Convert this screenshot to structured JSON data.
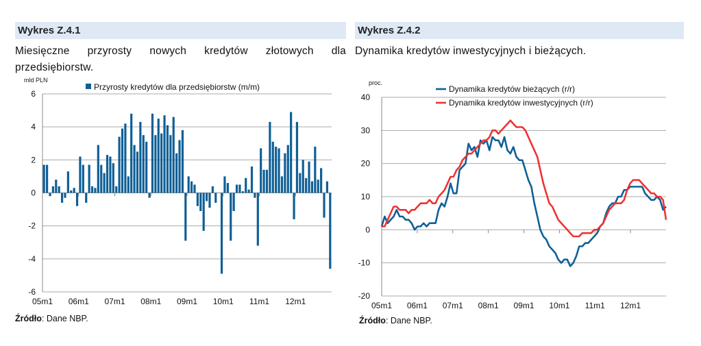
{
  "left": {
    "title": "Wykres Z.4.1",
    "subtitle": "Miesięczne przyrosty nowych kredytów złotowych dla przedsiębiorstw.",
    "source_bold": "Źródło",
    "source_rest": ": Dane NBP."
  },
  "right": {
    "title": "Wykres Z.4.2",
    "subtitle": "Dynamika kredytów inwestycyjnych i bieżących.",
    "source_bold": "Źródło",
    "source_rest": ": Dane NBP."
  },
  "chart_data": [
    {
      "type": "bar",
      "ylabel": "mld PLN",
      "ylim": [
        -6,
        6
      ],
      "yticks": [
        -6,
        -4,
        -2,
        0,
        2,
        4,
        6
      ],
      "xticklabels": [
        "05m1",
        "06m1",
        "07m1",
        "08m1",
        "09m1",
        "10m1",
        "11m1",
        "12m1"
      ],
      "color": "#0f5f96",
      "legend": "top-center",
      "grid": true,
      "series": [
        {
          "name": "Przyrosty kredytów dla przedsiębiorstw (m/m)",
          "values": [
            1.7,
            1.7,
            -0.2,
            0.4,
            0.8,
            0.4,
            -0.6,
            -0.3,
            1.3,
            0.15,
            0.3,
            -0.8,
            2.2,
            1.7,
            -0.6,
            1.7,
            0.4,
            0.3,
            2.9,
            1.7,
            1.2,
            2.3,
            2.2,
            1.8,
            0.4,
            3.4,
            3.9,
            4.2,
            1.0,
            4.8,
            2.9,
            2.5,
            4.3,
            3.5,
            3.1,
            -0.3,
            4.8,
            3.5,
            4.5,
            3.6,
            4.7,
            4.1,
            3.5,
            4.6,
            2.4,
            3.2,
            3.8,
            -2.9,
            1.0,
            0.7,
            0.5,
            -0.8,
            -1.1,
            -2.3,
            -0.5,
            -0.9,
            0.4,
            -0.6,
            0.0,
            -4.9,
            1.0,
            0.6,
            -2.9,
            -1.1,
            0.5,
            0.5,
            0.1,
            0.9,
            0.2,
            1.6,
            -0.3,
            -3.2,
            2.7,
            1.4,
            1.4,
            4.3,
            3.1,
            2.8,
            2.7,
            1.0,
            2.4,
            2.9,
            4.9,
            -1.6,
            4.3,
            1.2,
            2.0,
            0.9,
            1.9,
            0.7,
            2.8,
            0.8,
            1.5,
            -1.5,
            0.7,
            -4.6
          ]
        }
      ]
    },
    {
      "type": "line",
      "ylabel": "proc.",
      "ylim": [
        -20,
        40
      ],
      "yticks": [
        -20,
        -10,
        0,
        10,
        20,
        30,
        40
      ],
      "xticklabels": [
        "05m1",
        "06m1",
        "07m1",
        "08m1",
        "09m1",
        "10m1",
        "11m1",
        "12m1"
      ],
      "legend": "top-left",
      "grid": true,
      "series": [
        {
          "name": "Dynamika kredytów bieżących (r/r)",
          "color": "#0f5f96",
          "values": [
            1,
            4,
            2,
            3,
            4,
            6,
            4,
            4,
            3,
            3,
            2,
            0,
            1,
            1,
            2,
            1,
            2,
            2,
            2,
            6,
            8,
            7,
            10,
            14,
            11,
            11,
            18,
            19,
            20,
            26,
            24,
            25,
            22,
            27,
            26,
            27,
            24,
            28,
            27,
            27,
            25,
            28,
            24,
            23,
            25,
            22,
            21,
            21,
            18,
            15,
            13,
            8,
            4,
            0,
            -2,
            -3,
            -5,
            -6,
            -7,
            -9,
            -10,
            -9,
            -9,
            -11,
            -10,
            -8,
            -5,
            -5,
            -4,
            -4,
            -3,
            -2,
            -1,
            1,
            2,
            5,
            7,
            8,
            8,
            10,
            10,
            12,
            12,
            13,
            13,
            13,
            13,
            13,
            11,
            10,
            9,
            9,
            10,
            9,
            6,
            7
          ]
        },
        {
          "name": "Dynamika kredytów inwestycyjnych (r/r)",
          "color": "#ee3333",
          "values": [
            1,
            1,
            3,
            5,
            7,
            7,
            6,
            6,
            6,
            5,
            6,
            6,
            7,
            8,
            8,
            8,
            9,
            8,
            8,
            10,
            11,
            12,
            14,
            16,
            16,
            18,
            19,
            21,
            22,
            23,
            23,
            24,
            25,
            26,
            27,
            27,
            28,
            30,
            30,
            29,
            30,
            31,
            32,
            33,
            32,
            31,
            31,
            31,
            30,
            28,
            26,
            24,
            22,
            18,
            14,
            11,
            8,
            7,
            5,
            3,
            2,
            1,
            0,
            -1,
            -2,
            -2,
            -2,
            -1,
            -1,
            -1,
            -1,
            0,
            0,
            1,
            2,
            4,
            6,
            7,
            8,
            8,
            8,
            9,
            12,
            14,
            15,
            15,
            15,
            14,
            13,
            12,
            11,
            11,
            10,
            10,
            9,
            3
          ]
        }
      ]
    }
  ]
}
